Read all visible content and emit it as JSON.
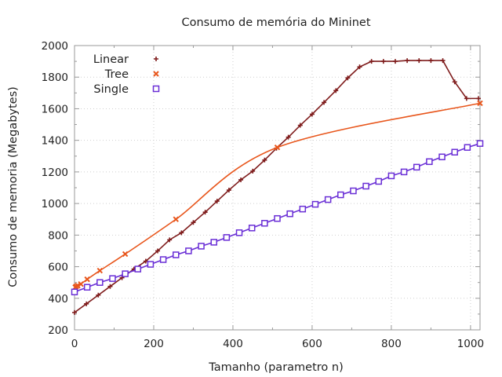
{
  "chart_data": {
    "type": "line",
    "title": "Consumo de memória do Mininet",
    "xlabel": "Tamanho (parametro n)",
    "ylabel": "Consumo de memoria (Megabytes)",
    "xlim": [
      0,
      1024
    ],
    "ylim": [
      200,
      2000
    ],
    "xticks": [
      0,
      200,
      400,
      600,
      800,
      1000
    ],
    "yticks": [
      200,
      400,
      600,
      800,
      1000,
      1200,
      1400,
      1600,
      1800,
      2000
    ],
    "grid": true,
    "legend_position": "top-left",
    "series": [
      {
        "name": "Linear",
        "color": "#7f1c1c",
        "marker": "plus",
        "x": [
          0,
          30,
          60,
          90,
          120,
          150,
          180,
          210,
          240,
          270,
          300,
          330,
          360,
          390,
          420,
          450,
          480,
          510,
          540,
          570,
          600,
          630,
          660,
          690,
          720,
          750,
          780,
          810,
          840,
          870,
          900,
          930,
          960,
          990,
          1020
        ],
        "y": [
          310,
          365,
          420,
          475,
          530,
          585,
          635,
          700,
          770,
          815,
          880,
          945,
          1015,
          1085,
          1150,
          1205,
          1275,
          1350,
          1420,
          1495,
          1565,
          1640,
          1715,
          1795,
          1865,
          1900,
          1900,
          1900,
          1905,
          1905,
          1905,
          1905,
          1770,
          1665,
          1665
        ]
      },
      {
        "name": "Tree",
        "color": "#e8561c",
        "marker": "cross",
        "x": [
          2,
          4,
          8,
          16,
          32,
          64,
          128,
          256,
          512,
          1024
        ],
        "y": [
          470,
          475,
          480,
          490,
          520,
          575,
          680,
          900,
          1355,
          1635
        ]
      },
      {
        "name": "Single",
        "color": "#6a2fd6",
        "marker": "square",
        "x": [
          0,
          32,
          64,
          96,
          128,
          160,
          192,
          224,
          256,
          288,
          320,
          352,
          384,
          416,
          448,
          480,
          512,
          544,
          576,
          608,
          640,
          672,
          704,
          736,
          768,
          800,
          832,
          864,
          896,
          928,
          960,
          992,
          1024
        ],
        "y": [
          440,
          470,
          500,
          525,
          555,
          585,
          615,
          645,
          675,
          700,
          730,
          755,
          785,
          815,
          845,
          875,
          905,
          935,
          965,
          995,
          1025,
          1055,
          1080,
          1110,
          1140,
          1175,
          1200,
          1230,
          1265,
          1295,
          1325,
          1355,
          1380
        ]
      }
    ]
  }
}
